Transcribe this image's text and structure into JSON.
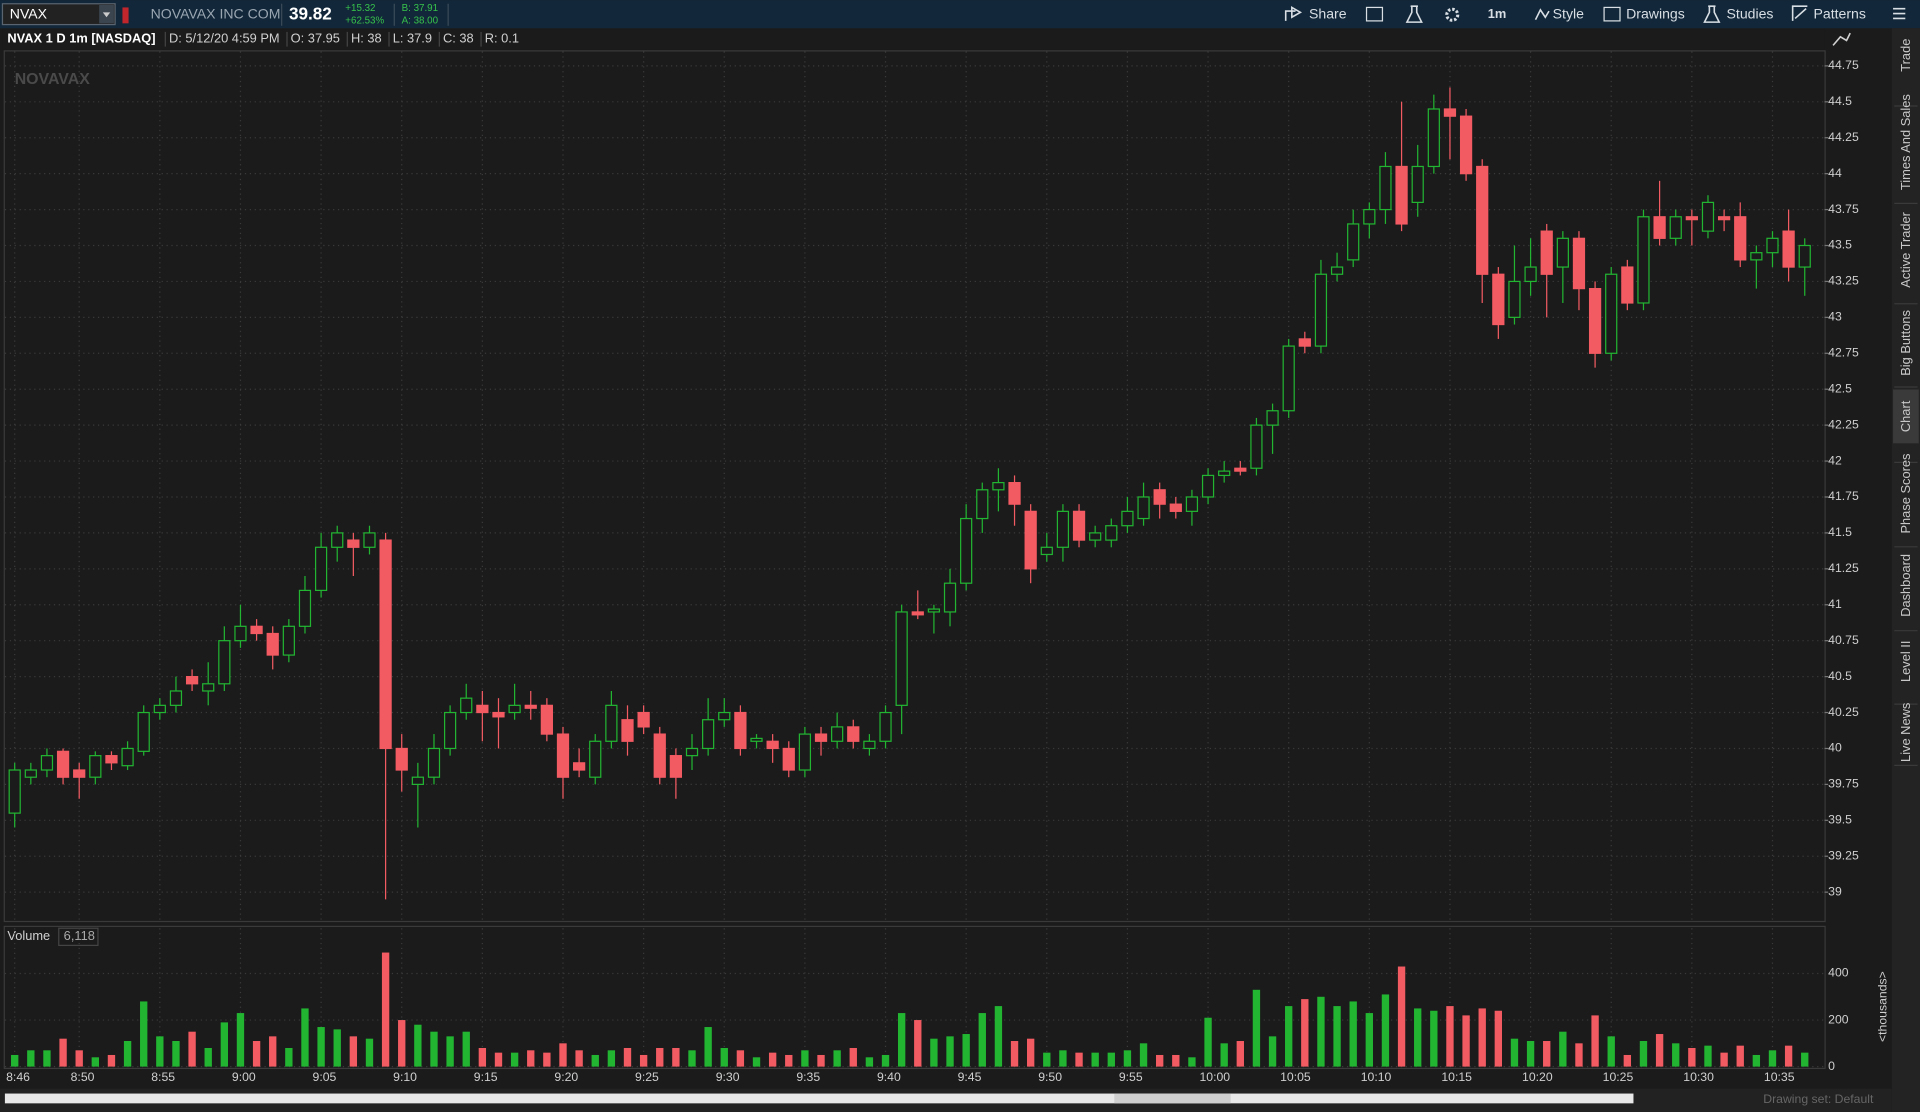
{
  "toolbar": {
    "symbol": "NVAX",
    "company": "NOVAVAX INC COM",
    "last": 39.82,
    "change": "+15.32",
    "change_pct": "+62.53%",
    "bid": "B: 37.91",
    "ask": "A: 38.00",
    "buttons": [
      "Share",
      "1m",
      "Style",
      "Drawings",
      "Studies",
      "Patterns"
    ]
  },
  "side_tabs": [
    "Trade",
    "Times And Sales",
    "Active Trader",
    "Big Buttons",
    "Chart",
    "Phase Scores",
    "Dashboard",
    "Level II",
    "Live News"
  ],
  "footer": "Drawing set: Default",
  "chart_data": [
    {
      "type": "candlestick",
      "title": "NVAX 1 D 1m [NASDAQ]",
      "info": [
        "D: 5/12/20 4:59 PM",
        "O: 37.95",
        "H: 38",
        "L: 37.9",
        "C: 38",
        "R: 0.1"
      ],
      "watermark": "NOVAVAX",
      "up_color": "#22b532",
      "down_color": "#f35b63",
      "grid": true,
      "categories": [
        "8:46",
        null,
        null,
        null,
        "8:50",
        null,
        null,
        null,
        null,
        "8:55",
        null,
        null,
        null,
        null,
        "9:00",
        null,
        null,
        null,
        null,
        "9:05",
        null,
        null,
        null,
        null,
        "9:10",
        null,
        null,
        null,
        null,
        "9:15",
        null,
        null,
        null,
        null,
        "9:20",
        null,
        null,
        null,
        null,
        "9:25",
        null,
        null,
        null,
        null,
        "9:30",
        null,
        null,
        null,
        null,
        "9:35",
        null,
        null,
        null,
        null,
        "9:40",
        null,
        null,
        null,
        null,
        "9:45",
        null,
        null,
        null,
        null,
        "9:50",
        null,
        null,
        null,
        null,
        "9:55",
        null,
        null,
        null,
        null,
        "10:00",
        null,
        null,
        null,
        null,
        "10:05",
        null,
        null,
        null,
        null,
        "10:10",
        null,
        null,
        null,
        null,
        "10:15",
        null,
        null,
        null,
        null,
        "10:20",
        null,
        null,
        null,
        null,
        "10:25",
        null,
        null,
        null,
        null,
        "10:30",
        null,
        null,
        null,
        null,
        "10:35",
        null,
        null
      ],
      "open": [
        39.55,
        39.8,
        39.85,
        39.98,
        39.85,
        39.8,
        39.95,
        39.88,
        39.98,
        40.25,
        40.3,
        40.5,
        40.4,
        40.45,
        40.75,
        40.85,
        40.8,
        40.65,
        40.85,
        41.1,
        41.4,
        41.45,
        41.4,
        41.45,
        40.0,
        39.75,
        39.8,
        40.0,
        40.25,
        40.3,
        40.25,
        40.25,
        40.3,
        40.3,
        40.1,
        39.9,
        39.8,
        40.05,
        40.2,
        40.25,
        40.1,
        39.95,
        39.95,
        40.0,
        40.2,
        40.25,
        40.05,
        40.05,
        40.0,
        39.85,
        40.1,
        40.05,
        40.15,
        40.0,
        40.05,
        40.3,
        40.95,
        40.95,
        40.95,
        41.15,
        41.6,
        41.8,
        41.85,
        41.65,
        41.35,
        41.4,
        41.65,
        41.45,
        41.45,
        41.55,
        41.6,
        41.8,
        41.7,
        41.65,
        41.75,
        41.9,
        41.95,
        41.95,
        42.25,
        42.35,
        42.85,
        42.8,
        43.3,
        43.4,
        43.65,
        43.75,
        44.05,
        43.8,
        44.05,
        44.45,
        44.4,
        44.05,
        43.3,
        43.0,
        43.25,
        43.6,
        43.35,
        43.55,
        43.2,
        42.75,
        43.35,
        43.1,
        43.7,
        43.55,
        43.7,
        43.6,
        43.7,
        43.7,
        43.4,
        43.45,
        43.6,
        43.35
      ],
      "high": [
        39.9,
        39.9,
        40.0,
        40.0,
        39.9,
        39.98,
        39.98,
        40.05,
        40.3,
        40.35,
        40.5,
        40.55,
        40.6,
        40.85,
        41.0,
        40.9,
        40.85,
        40.9,
        41.2,
        41.5,
        41.55,
        41.5,
        41.55,
        41.5,
        40.1,
        39.9,
        40.1,
        40.3,
        40.45,
        40.4,
        40.35,
        40.45,
        40.4,
        40.35,
        40.15,
        40.0,
        40.1,
        40.4,
        40.3,
        40.3,
        40.15,
        40.0,
        40.1,
        40.35,
        40.35,
        40.3,
        40.1,
        40.1,
        40.05,
        40.15,
        40.15,
        40.25,
        40.2,
        40.1,
        40.3,
        41.0,
        41.1,
        41.0,
        41.25,
        41.7,
        41.85,
        41.95,
        41.9,
        41.7,
        41.5,
        41.7,
        41.7,
        41.55,
        41.6,
        41.75,
        41.85,
        41.85,
        41.75,
        41.8,
        41.95,
        42.0,
        42.0,
        42.3,
        42.4,
        42.85,
        42.9,
        43.4,
        43.45,
        43.75,
        43.8,
        44.15,
        44.5,
        44.2,
        44.55,
        44.6,
        44.45,
        44.1,
        43.35,
        43.5,
        43.55,
        43.65,
        43.6,
        43.6,
        43.25,
        43.35,
        43.4,
        43.75,
        43.95,
        43.75,
        43.75,
        43.85,
        43.75,
        43.8,
        43.5,
        43.6,
        43.75,
        43.55
      ],
      "low": [
        39.45,
        39.75,
        39.8,
        39.75,
        39.65,
        39.75,
        39.85,
        39.85,
        39.95,
        40.2,
        40.25,
        40.4,
        40.3,
        40.4,
        40.7,
        40.75,
        40.55,
        40.6,
        40.8,
        41.05,
        41.3,
        41.2,
        41.35,
        38.95,
        39.7,
        39.45,
        39.75,
        39.95,
        40.2,
        40.05,
        40.0,
        40.2,
        40.2,
        40.05,
        39.65,
        39.8,
        39.75,
        40.0,
        39.95,
        40.1,
        39.75,
        39.65,
        39.85,
        39.95,
        40.15,
        39.95,
        40.0,
        39.9,
        39.8,
        39.8,
        39.95,
        40.0,
        40.0,
        39.95,
        40.0,
        40.1,
        40.9,
        40.8,
        40.85,
        41.1,
        41.5,
        41.65,
        41.55,
        41.15,
        41.3,
        41.3,
        41.4,
        41.4,
        41.4,
        41.5,
        41.55,
        41.6,
        41.6,
        41.55,
        41.7,
        41.85,
        41.9,
        41.9,
        42.05,
        42.3,
        42.75,
        42.75,
        43.25,
        43.35,
        43.55,
        43.65,
        43.6,
        43.7,
        44.0,
        44.1,
        43.95,
        43.1,
        42.85,
        42.95,
        43.15,
        43.0,
        43.1,
        43.05,
        42.65,
        42.7,
        43.05,
        43.05,
        43.5,
        43.5,
        43.5,
        43.55,
        43.6,
        43.35,
        43.2,
        43.35,
        43.25,
        43.15
      ],
      "close": [
        39.85,
        39.85,
        39.95,
        39.8,
        39.8,
        39.95,
        39.9,
        40.0,
        40.25,
        40.3,
        40.4,
        40.45,
        40.45,
        40.75,
        40.85,
        40.8,
        40.65,
        40.85,
        41.1,
        41.4,
        41.5,
        41.4,
        41.5,
        40.0,
        39.85,
        39.8,
        40.0,
        40.25,
        40.35,
        40.25,
        40.22,
        40.3,
        40.28,
        40.1,
        39.8,
        39.85,
        40.05,
        40.3,
        40.05,
        40.15,
        39.8,
        39.8,
        40.0,
        40.2,
        40.25,
        40.0,
        40.07,
        40.0,
        39.85,
        40.1,
        40.05,
        40.15,
        40.05,
        40.05,
        40.25,
        40.95,
        40.93,
        40.97,
        41.15,
        41.6,
        41.8,
        41.85,
        41.7,
        41.25,
        41.4,
        41.65,
        41.45,
        41.5,
        41.55,
        41.65,
        41.75,
        41.7,
        41.65,
        41.75,
        41.9,
        41.93,
        41.93,
        42.25,
        42.35,
        42.8,
        42.8,
        43.3,
        43.35,
        43.65,
        43.75,
        44.05,
        43.65,
        44.05,
        44.45,
        44.4,
        44.0,
        43.3,
        42.95,
        43.25,
        43.35,
        43.3,
        43.55,
        43.2,
        42.75,
        43.3,
        43.1,
        43.7,
        43.55,
        43.7,
        43.68,
        43.8,
        43.68,
        43.4,
        43.45,
        43.55,
        43.35,
        43.5
      ],
      "ylim": [
        38.8,
        44.85
      ],
      "yticks": [
        39,
        39.25,
        39.5,
        39.75,
        40,
        40.25,
        40.5,
        40.75,
        41,
        41.25,
        41.5,
        41.75,
        42,
        42.25,
        42.5,
        42.75,
        43,
        43.25,
        43.5,
        43.75,
        44,
        44.25,
        44.5,
        44.75
      ]
    },
    {
      "type": "bar",
      "title": "Volume",
      "info": [
        "6,118"
      ],
      "y_label": "<thousands>",
      "grid": true,
      "values": [
        50,
        70,
        70,
        120,
        70,
        40,
        50,
        110,
        280,
        130,
        110,
        150,
        80,
        190,
        230,
        110,
        130,
        80,
        250,
        170,
        160,
        130,
        120,
        490,
        200,
        180,
        150,
        130,
        150,
        80,
        60,
        60,
        70,
        60,
        100,
        70,
        50,
        70,
        80,
        50,
        80,
        80,
        70,
        170,
        80,
        70,
        40,
        60,
        50,
        70,
        50,
        70,
        80,
        40,
        50,
        230,
        200,
        120,
        130,
        140,
        230,
        260,
        110,
        120,
        60,
        70,
        60,
        60,
        60,
        70,
        100,
        50,
        50,
        40,
        210,
        100,
        110,
        330,
        130,
        260,
        290,
        300,
        260,
        280,
        230,
        310,
        430,
        250,
        240,
        260,
        220,
        250,
        240,
        120,
        110,
        110,
        150,
        100,
        220,
        130,
        50,
        110,
        140,
        100,
        80,
        90,
        60,
        90,
        50,
        70,
        90,
        60
      ],
      "ylim": [
        0,
        505
      ],
      "yticks": [
        0,
        200,
        400
      ]
    }
  ]
}
